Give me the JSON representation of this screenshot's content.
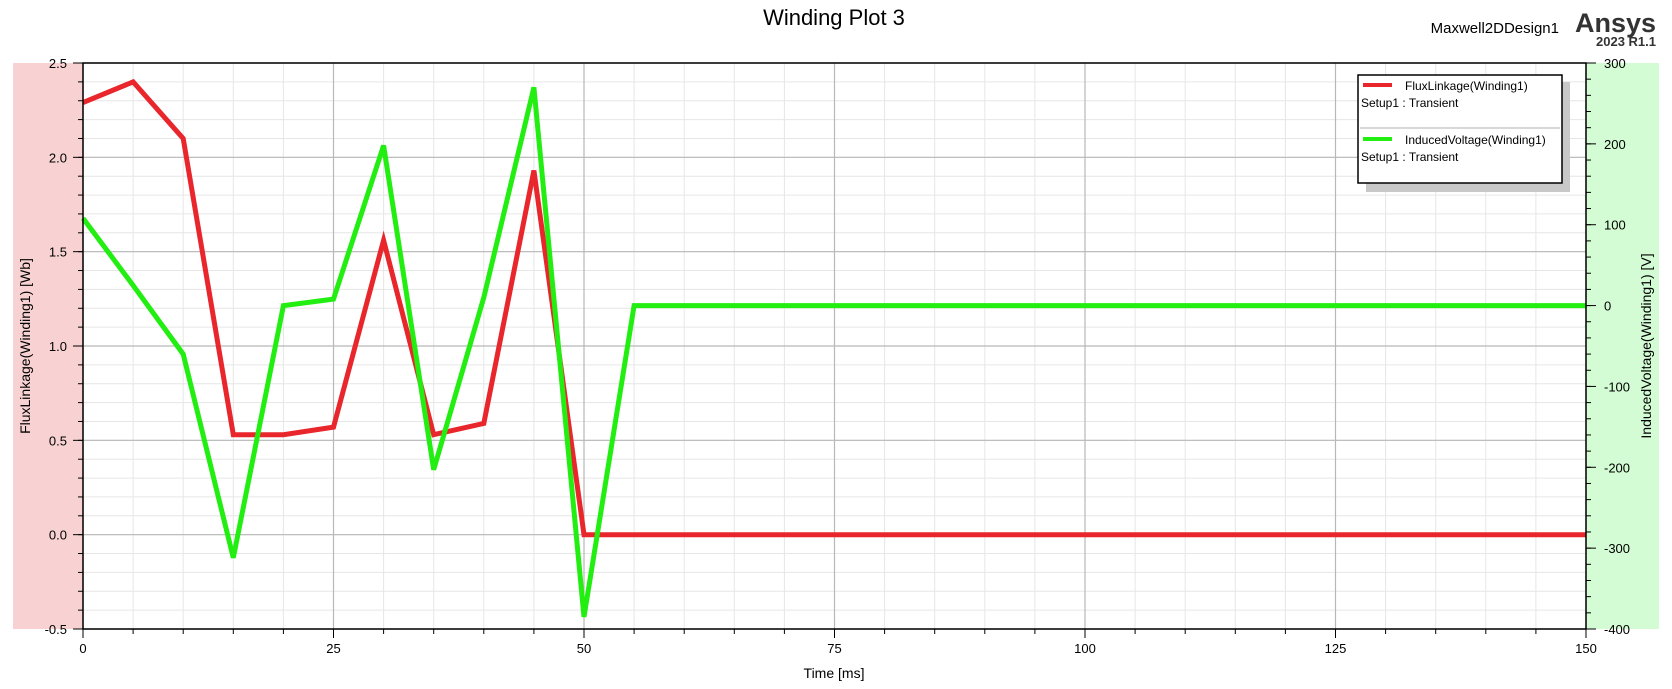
{
  "header": {
    "design_name": "Maxwell2DDesign1",
    "brand": "Ansys",
    "version": "2023 R1.1"
  },
  "chart_data": {
    "type": "line",
    "title": "Winding Plot 3",
    "xlabel": "Time [ms]",
    "ylabel_left": "FluxLinkage(Winding1) [Wb]",
    "ylabel_right": "InducedVoltage(Winding1) [V]",
    "xlim": [
      0,
      150
    ],
    "ylim_left": [
      -0.5,
      2.5
    ],
    "ylim_right": [
      -400,
      300
    ],
    "x_ticks": [
      0,
      25,
      50,
      75,
      100,
      125,
      150
    ],
    "y_left_ticks": [
      "-0.5",
      "0.0",
      "0.5",
      "1.0",
      "1.5",
      "2.0",
      "2.5"
    ],
    "y_right_ticks": [
      "-400",
      "-300",
      "-200",
      "-100",
      "0",
      "100",
      "200",
      "300"
    ],
    "grid": true,
    "legend_position": "top-right",
    "colors": {
      "flux": "#e8262c",
      "voltage": "#22ee11",
      "left_axis_band": "#f8d2d2",
      "right_axis_band": "#d4fcd4"
    },
    "series": [
      {
        "name": "FluxLinkage(Winding1)",
        "setup": "Setup1 : Transient",
        "axis": "left",
        "color": "#e8262c",
        "x": [
          0,
          5,
          10,
          15,
          20,
          25,
          30,
          35,
          40,
          45,
          50,
          55,
          60,
          70,
          80,
          90,
          100,
          110,
          120,
          130,
          140,
          150
        ],
        "values": [
          2.29,
          2.4,
          2.1,
          0.53,
          0.53,
          0.57,
          1.56,
          0.53,
          0.59,
          1.93,
          0.0,
          0.0,
          0.0,
          0.0,
          0.0,
          0.0,
          0.0,
          0.0,
          0.0,
          0.0,
          0.0,
          0.0
        ]
      },
      {
        "name": "InducedVoltage(Winding1)",
        "setup": "Setup1 : Transient",
        "axis": "right",
        "color": "#22ee11",
        "x": [
          0,
          5,
          10,
          15,
          20,
          25,
          30,
          35,
          40,
          45,
          50,
          55,
          60,
          70,
          80,
          90,
          100,
          110,
          120,
          130,
          140,
          150
        ],
        "values": [
          108,
          25,
          -60,
          -312,
          0,
          8,
          198,
          -203,
          10,
          270,
          -385,
          0,
          0,
          0,
          0,
          0,
          0,
          0,
          0,
          0,
          0,
          0
        ]
      }
    ]
  }
}
